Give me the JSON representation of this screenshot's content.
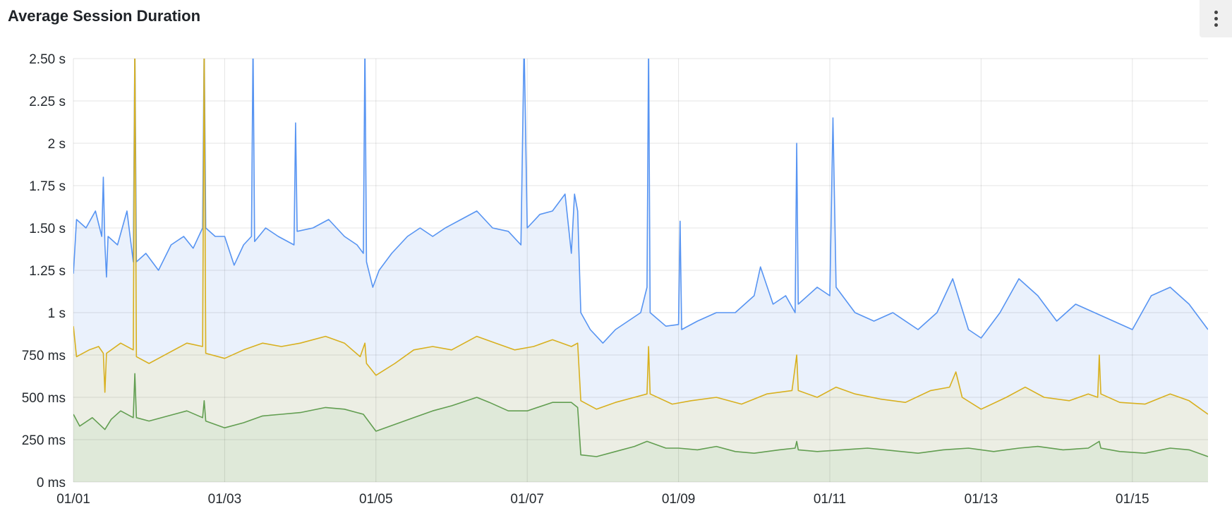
{
  "panel": {
    "title": "Average Session Duration",
    "menu_icon": "kebab-menu-icon"
  },
  "chart_data": {
    "type": "area",
    "title": "Average Session Duration",
    "xlabel": "",
    "ylabel": "",
    "x_range": [
      "01/01 00:00",
      "01/16 00:00"
    ],
    "ylim_ms": [
      0,
      2500
    ],
    "y_ticks": [
      {
        "v": 0,
        "label": "0 ms"
      },
      {
        "v": 250,
        "label": "250 ms"
      },
      {
        "v": 500,
        "label": "500 ms"
      },
      {
        "v": 750,
        "label": "750 ms"
      },
      {
        "v": 1000,
        "label": "1 s"
      },
      {
        "v": 1250,
        "label": "1.25 s"
      },
      {
        "v": 1500,
        "label": "1.50 s"
      },
      {
        "v": 1750,
        "label": "1.75 s"
      },
      {
        "v": 2000,
        "label": "2 s"
      },
      {
        "v": 2250,
        "label": "2.25 s"
      },
      {
        "v": 2500,
        "label": "2.50 s"
      }
    ],
    "x_ticks": [
      "01/01",
      "01/03",
      "01/05",
      "01/07",
      "01/09",
      "01/11",
      "01/13",
      "01/15"
    ],
    "grid": true,
    "legend": "none",
    "series": [
      {
        "color": "#5794f2",
        "fill": "#eaf1fc",
        "values": [
          [
            "01/01 00:00",
            1230
          ],
          [
            "01/01 01:00",
            1550
          ],
          [
            "01/01 04:00",
            1500
          ],
          [
            "01/01 07:00",
            1600
          ],
          [
            "01/01 09:00",
            1450
          ],
          [
            "01/01 09:30",
            1800
          ],
          [
            "01/01 10:00",
            1400
          ],
          [
            "01/01 10:30",
            1210
          ],
          [
            "01/01 11:00",
            1450
          ],
          [
            "01/01 14:00",
            1400
          ],
          [
            "01/01 17:00",
            1600
          ],
          [
            "01/01 19:00",
            1300
          ],
          [
            "01/01 19:30",
            2800
          ],
          [
            "01/01 20:00",
            1300
          ],
          [
            "01/01 23:00",
            1350
          ],
          [
            "01/02 03:00",
            1250
          ],
          [
            "01/02 07:00",
            1400
          ],
          [
            "01/02 11:00",
            1450
          ],
          [
            "01/02 14:00",
            1380
          ],
          [
            "01/02 17:00",
            1500
          ],
          [
            "01/02 17:30",
            2800
          ],
          [
            "01/02 18:00",
            1500
          ],
          [
            "01/02 21:00",
            1450
          ],
          [
            "01/03 00:00",
            1450
          ],
          [
            "01/03 03:00",
            1280
          ],
          [
            "01/03 06:00",
            1400
          ],
          [
            "01/03 08:30",
            1450
          ],
          [
            "01/03 09:00",
            2800
          ],
          [
            "01/03 09:30",
            1420
          ],
          [
            "01/03 13:00",
            1500
          ],
          [
            "01/03 17:00",
            1450
          ],
          [
            "01/03 22:00",
            1400
          ],
          [
            "01/03 22:30",
            2120
          ],
          [
            "01/03 23:00",
            1480
          ],
          [
            "01/04 04:00",
            1500
          ],
          [
            "01/04 09:00",
            1550
          ],
          [
            "01/04 14:00",
            1450
          ],
          [
            "01/04 18:00",
            1400
          ],
          [
            "01/04 20:00",
            1350
          ],
          [
            "01/04 20:30",
            2800
          ],
          [
            "01/04 21:00",
            1300
          ],
          [
            "01/04 23:00",
            1150
          ],
          [
            "01/05 01:00",
            1250
          ],
          [
            "01/05 05:00",
            1350
          ],
          [
            "01/05 10:00",
            1450
          ],
          [
            "01/05 14:00",
            1500
          ],
          [
            "01/05 18:00",
            1450
          ],
          [
            "01/05 22:00",
            1500
          ],
          [
            "01/06 03:00",
            1550
          ],
          [
            "01/06 08:00",
            1600
          ],
          [
            "01/06 13:00",
            1500
          ],
          [
            "01/06 18:00",
            1480
          ],
          [
            "01/06 22:00",
            1400
          ],
          [
            "01/06 23:00",
            2800
          ],
          [
            "01/07 00:00",
            1500
          ],
          [
            "01/07 04:00",
            1580
          ],
          [
            "01/07 08:00",
            1600
          ],
          [
            "01/07 12:00",
            1700
          ],
          [
            "01/07 14:00",
            1350
          ],
          [
            "01/07 15:00",
            1700
          ],
          [
            "01/07 16:00",
            1600
          ],
          [
            "01/07 17:00",
            1000
          ],
          [
            "01/07 20:00",
            900
          ],
          [
            "01/08 00:00",
            820
          ],
          [
            "01/08 04:00",
            900
          ],
          [
            "01/08 08:00",
            950
          ],
          [
            "01/08 12:00",
            1000
          ],
          [
            "01/08 14:00",
            1150
          ],
          [
            "01/08 14:30",
            2800
          ],
          [
            "01/08 15:00",
            1000
          ],
          [
            "01/08 20:00",
            920
          ],
          [
            "01/09 00:00",
            930
          ],
          [
            "01/09 00:30",
            1540
          ],
          [
            "01/09 01:00",
            900
          ],
          [
            "01/09 06:00",
            950
          ],
          [
            "01/09 12:00",
            1000
          ],
          [
            "01/09 18:00",
            1000
          ],
          [
            "01/10 00:00",
            1100
          ],
          [
            "01/10 02:00",
            1270
          ],
          [
            "01/10 06:00",
            1050
          ],
          [
            "01/10 10:00",
            1100
          ],
          [
            "01/10 13:00",
            1000
          ],
          [
            "01/10 13:30",
            2000
          ],
          [
            "01/10 14:00",
            1050
          ],
          [
            "01/10 20:00",
            1150
          ],
          [
            "01/11 00:00",
            1100
          ],
          [
            "01/11 01:00",
            2150
          ],
          [
            "01/11 02:00",
            1150
          ],
          [
            "01/11 08:00",
            1000
          ],
          [
            "01/11 14:00",
            950
          ],
          [
            "01/11 20:00",
            1000
          ],
          [
            "01/12 04:00",
            900
          ],
          [
            "01/12 10:00",
            1000
          ],
          [
            "01/12 15:00",
            1200
          ],
          [
            "01/12 20:00",
            900
          ],
          [
            "01/13 00:00",
            850
          ],
          [
            "01/13 06:00",
            1000
          ],
          [
            "01/13 12:00",
            1200
          ],
          [
            "01/13 18:00",
            1100
          ],
          [
            "01/14 00:00",
            950
          ],
          [
            "01/14 06:00",
            1050
          ],
          [
            "01/14 12:00",
            1000
          ],
          [
            "01/14 18:00",
            950
          ],
          [
            "01/15 00:00",
            900
          ],
          [
            "01/15 06:00",
            1100
          ],
          [
            "01/15 12:00",
            1150
          ],
          [
            "01/15 18:00",
            1050
          ],
          [
            "01/16 00:00",
            900
          ]
        ]
      },
      {
        "color": "#d8b01f",
        "fill": "#eceee4",
        "values": [
          [
            "01/01 00:00",
            920
          ],
          [
            "01/01 01:00",
            740
          ],
          [
            "01/01 05:00",
            780
          ],
          [
            "01/01 08:00",
            800
          ],
          [
            "01/01 09:30",
            760
          ],
          [
            "01/01 10:00",
            530
          ],
          [
            "01/01 10:30",
            760
          ],
          [
            "01/01 15:00",
            820
          ],
          [
            "01/01 19:00",
            780
          ],
          [
            "01/01 19:30",
            2800
          ],
          [
            "01/01 20:00",
            740
          ],
          [
            "01/02 00:00",
            700
          ],
          [
            "01/02 06:00",
            760
          ],
          [
            "01/02 12:00",
            820
          ],
          [
            "01/02 17:00",
            800
          ],
          [
            "01/02 17:30",
            2800
          ],
          [
            "01/02 18:00",
            760
          ],
          [
            "01/03 00:00",
            730
          ],
          [
            "01/03 06:00",
            780
          ],
          [
            "01/03 12:00",
            820
          ],
          [
            "01/03 18:00",
            800
          ],
          [
            "01/04 00:00",
            820
          ],
          [
            "01/04 08:00",
            860
          ],
          [
            "01/04 14:00",
            820
          ],
          [
            "01/04 19:00",
            740
          ],
          [
            "01/04 20:30",
            820
          ],
          [
            "01/04 21:00",
            700
          ],
          [
            "01/05 00:00",
            630
          ],
          [
            "01/05 06:00",
            700
          ],
          [
            "01/05 12:00",
            780
          ],
          [
            "01/05 18:00",
            800
          ],
          [
            "01/06 00:00",
            780
          ],
          [
            "01/06 08:00",
            860
          ],
          [
            "01/06 14:00",
            820
          ],
          [
            "01/06 20:00",
            780
          ],
          [
            "01/07 02:00",
            800
          ],
          [
            "01/07 08:00",
            840
          ],
          [
            "01/07 14:00",
            800
          ],
          [
            "01/07 16:00",
            820
          ],
          [
            "01/07 17:00",
            480
          ],
          [
            "01/07 22:00",
            430
          ],
          [
            "01/08 04:00",
            470
          ],
          [
            "01/08 10:00",
            500
          ],
          [
            "01/08 14:00",
            520
          ],
          [
            "01/08 14:30",
            800
          ],
          [
            "01/08 15:00",
            520
          ],
          [
            "01/08 22:00",
            460
          ],
          [
            "01/09 04:00",
            480
          ],
          [
            "01/09 12:00",
            500
          ],
          [
            "01/09 20:00",
            460
          ],
          [
            "01/10 04:00",
            520
          ],
          [
            "01/10 12:00",
            540
          ],
          [
            "01/10 13:30",
            750
          ],
          [
            "01/10 14:00",
            540
          ],
          [
            "01/10 20:00",
            500
          ],
          [
            "01/11 02:00",
            560
          ],
          [
            "01/11 08:00",
            520
          ],
          [
            "01/11 16:00",
            490
          ],
          [
            "01/12 00:00",
            470
          ],
          [
            "01/12 08:00",
            540
          ],
          [
            "01/12 14:00",
            560
          ],
          [
            "01/12 16:00",
            650
          ],
          [
            "01/12 18:00",
            500
          ],
          [
            "01/13 00:00",
            430
          ],
          [
            "01/13 08:00",
            500
          ],
          [
            "01/13 14:00",
            560
          ],
          [
            "01/13 20:00",
            500
          ],
          [
            "01/14 04:00",
            480
          ],
          [
            "01/14 10:00",
            520
          ],
          [
            "01/14 13:00",
            500
          ],
          [
            "01/14 13:30",
            750
          ],
          [
            "01/14 14:00",
            520
          ],
          [
            "01/14 20:00",
            470
          ],
          [
            "01/15 04:00",
            460
          ],
          [
            "01/15 12:00",
            520
          ],
          [
            "01/15 18:00",
            480
          ],
          [
            "01/16 00:00",
            400
          ]
        ]
      },
      {
        "color": "#629e51",
        "fill": "#dfe9d9",
        "values": [
          [
            "01/01 00:00",
            400
          ],
          [
            "01/01 02:00",
            330
          ],
          [
            "01/01 06:00",
            380
          ],
          [
            "01/01 10:00",
            310
          ],
          [
            "01/01 12:00",
            370
          ],
          [
            "01/01 15:00",
            420
          ],
          [
            "01/01 19:00",
            380
          ],
          [
            "01/01 19:30",
            640
          ],
          [
            "01/01 20:00",
            380
          ],
          [
            "01/02 00:00",
            360
          ],
          [
            "01/02 06:00",
            390
          ],
          [
            "01/02 12:00",
            420
          ],
          [
            "01/02 17:00",
            380
          ],
          [
            "01/02 17:30",
            480
          ],
          [
            "01/02 18:00",
            360
          ],
          [
            "01/03 00:00",
            320
          ],
          [
            "01/03 06:00",
            350
          ],
          [
            "01/03 12:00",
            390
          ],
          [
            "01/03 18:00",
            400
          ],
          [
            "01/04 00:00",
            410
          ],
          [
            "01/04 08:00",
            440
          ],
          [
            "01/04 14:00",
            430
          ],
          [
            "01/04 20:00",
            400
          ],
          [
            "01/05 00:00",
            300
          ],
          [
            "01/05 06:00",
            340
          ],
          [
            "01/05 12:00",
            380
          ],
          [
            "01/05 18:00",
            420
          ],
          [
            "01/06 00:00",
            450
          ],
          [
            "01/06 08:00",
            500
          ],
          [
            "01/06 12:00",
            470
          ],
          [
            "01/06 18:00",
            420
          ],
          [
            "01/07 00:00",
            420
          ],
          [
            "01/07 08:00",
            470
          ],
          [
            "01/07 14:00",
            470
          ],
          [
            "01/07 16:00",
            440
          ],
          [
            "01/07 17:00",
            160
          ],
          [
            "01/07 22:00",
            150
          ],
          [
            "01/08 04:00",
            180
          ],
          [
            "01/08 10:00",
            210
          ],
          [
            "01/08 14:00",
            240
          ],
          [
            "01/08 20:00",
            200
          ],
          [
            "01/09 00:00",
            200
          ],
          [
            "01/09 06:00",
            190
          ],
          [
            "01/09 12:00",
            210
          ],
          [
            "01/09 18:00",
            180
          ],
          [
            "01/10 00:00",
            170
          ],
          [
            "01/10 08:00",
            190
          ],
          [
            "01/10 13:00",
            200
          ],
          [
            "01/10 13:30",
            240
          ],
          [
            "01/10 14:00",
            190
          ],
          [
            "01/10 20:00",
            180
          ],
          [
            "01/11 04:00",
            190
          ],
          [
            "01/11 12:00",
            200
          ],
          [
            "01/11 20:00",
            185
          ],
          [
            "01/12 04:00",
            170
          ],
          [
            "01/12 12:00",
            190
          ],
          [
            "01/12 20:00",
            200
          ],
          [
            "01/13 04:00",
            180
          ],
          [
            "01/13 12:00",
            200
          ],
          [
            "01/13 18:00",
            210
          ],
          [
            "01/14 02:00",
            190
          ],
          [
            "01/14 10:00",
            200
          ],
          [
            "01/14 13:30",
            240
          ],
          [
            "01/14 14:00",
            200
          ],
          [
            "01/14 20:00",
            180
          ],
          [
            "01/15 04:00",
            170
          ],
          [
            "01/15 12:00",
            200
          ],
          [
            "01/15 18:00",
            190
          ],
          [
            "01/16 00:00",
            150
          ]
        ]
      }
    ]
  }
}
